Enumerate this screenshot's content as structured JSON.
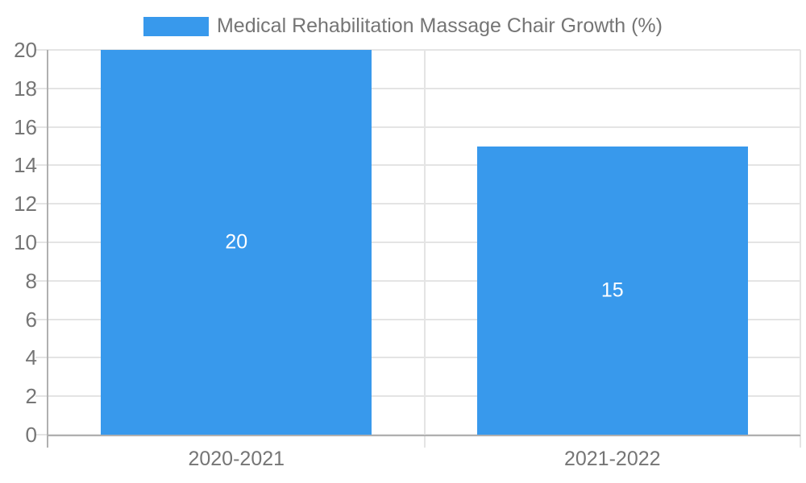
{
  "chart_data": {
    "type": "bar",
    "title": "",
    "legend": "Medical Rehabilitation Massage Chair Growth (%)",
    "legend_position": "top-center",
    "categories": [
      "2020-2021",
      "2021-2022"
    ],
    "values": [
      20,
      15
    ],
    "value_labels": [
      "20",
      "15"
    ],
    "xlabel": "",
    "ylabel": "",
    "ylim": [
      0,
      20
    ],
    "ytick_step": 2,
    "yticks": [
      0,
      2,
      4,
      6,
      8,
      10,
      12,
      14,
      16,
      18,
      20
    ],
    "grid": true,
    "colors": {
      "bar": "#3899EC",
      "label_gray": "#757575",
      "grid": "#E4E4E4",
      "axis": "#B0B0B0",
      "value_label": "#FFFFFF",
      "background": "#FFFFFF"
    }
  }
}
